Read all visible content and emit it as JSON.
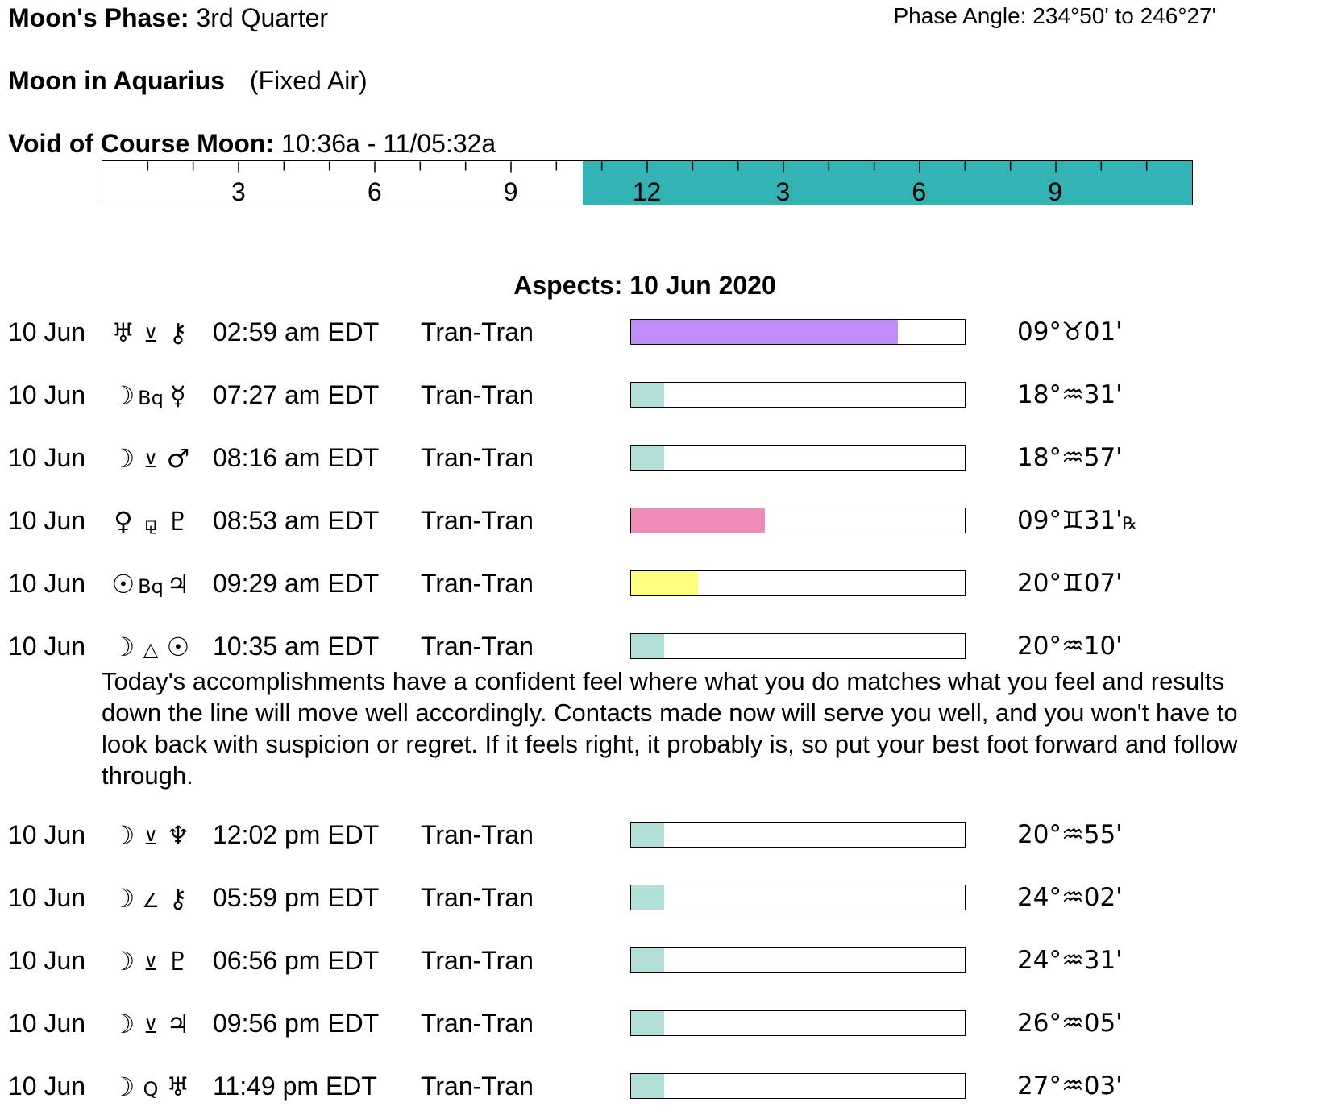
{
  "header": {
    "phase_label": "Moon's Phase:",
    "phase_value": "3rd Quarter",
    "phase_angle_label": "Phase Angle:",
    "phase_angle_value": "234°50' to 246°27'",
    "moon_sign_label": "Moon in Aquarius",
    "moon_sign_quality": "(Fixed Air)",
    "voc_label": "Void of Course Moon:",
    "voc_value": "10:36a - 11/05:32a"
  },
  "voc_timeline": {
    "hour_labels": [
      "3",
      "6",
      "9",
      "12",
      "3",
      "6",
      "9"
    ],
    "void_start_fraction": 0.441,
    "void_end_fraction": 1.0,
    "void_color": "#33b3b3"
  },
  "aspects": {
    "title": "Aspects: 10 Jun 2020",
    "rows": [
      {
        "date": "10 Jun",
        "planet1": "♅",
        "aspect": "⊻",
        "planet2": "⚷",
        "time": "02:59 am EDT",
        "kind": "Tran-Tran",
        "strength": 0.8,
        "color": "#c08cfa",
        "position": "09°♉01'",
        "retro": ""
      },
      {
        "date": "10 Jun",
        "planet1": "☽",
        "aspect": "Bq",
        "planet2": "☿",
        "time": "07:27 am EDT",
        "kind": "Tran-Tran",
        "strength": 0.1,
        "color": "#b3dfd9",
        "position": "18°♒31'",
        "retro": ""
      },
      {
        "date": "10 Jun",
        "planet1": "☽",
        "aspect": "⊻",
        "planet2": "♂",
        "time": "08:16 am EDT",
        "kind": "Tran-Tran",
        "strength": 0.1,
        "color": "#b3dfd9",
        "position": "18°♒57'",
        "retro": ""
      },
      {
        "date": "10 Jun",
        "planet1": "♀",
        "aspect": "⚼",
        "planet2": "♇",
        "time": "08:53 am EDT",
        "kind": "Tran-Tran",
        "strength": 0.4,
        "color": "#ef8cba",
        "position": "09°♊31'",
        "retro": "℞"
      },
      {
        "date": "10 Jun",
        "planet1": "☉",
        "aspect": "Bq",
        "planet2": "♃",
        "time": "09:29 am EDT",
        "kind": "Tran-Tran",
        "strength": 0.2,
        "color": "#ffff80",
        "position": "20°♊07'",
        "retro": ""
      },
      {
        "date": "10 Jun",
        "planet1": "☽",
        "aspect": "△",
        "planet2": "☉",
        "time": "10:35 am EDT",
        "kind": "Tran-Tran",
        "strength": 0.1,
        "color": "#b3dfd9",
        "position": "20°♒10'",
        "retro": ""
      },
      {
        "date": "10 Jun",
        "planet1": "☽",
        "aspect": "⊻",
        "planet2": "♆",
        "time": "12:02 pm EDT",
        "kind": "Tran-Tran",
        "strength": 0.1,
        "color": "#b3dfd9",
        "position": "20°♒55'",
        "retro": ""
      },
      {
        "date": "10 Jun",
        "planet1": "☽",
        "aspect": "∠",
        "planet2": "⚷",
        "time": "05:59 pm EDT",
        "kind": "Tran-Tran",
        "strength": 0.1,
        "color": "#b3dfd9",
        "position": "24°♒02'",
        "retro": ""
      },
      {
        "date": "10 Jun",
        "planet1": "☽",
        "aspect": "⊻",
        "planet2": "♇",
        "time": "06:56 pm EDT",
        "kind": "Tran-Tran",
        "strength": 0.1,
        "color": "#b3dfd9",
        "position": "24°♒31'",
        "retro": ""
      },
      {
        "date": "10 Jun",
        "planet1": "☽",
        "aspect": "⊻",
        "planet2": "♃",
        "time": "09:56 pm EDT",
        "kind": "Tran-Tran",
        "strength": 0.1,
        "color": "#b3dfd9",
        "position": "26°♒05'",
        "retro": ""
      },
      {
        "date": "10 Jun",
        "planet1": "☽",
        "aspect": "Q",
        "planet2": "♅",
        "time": "11:49 pm EDT",
        "kind": "Tran-Tran",
        "strength": 0.1,
        "color": "#b3dfd9",
        "position": "27°♒03'",
        "retro": ""
      }
    ],
    "interpretation": "Today's accomplishments have a confident feel where what you do matches what you feel and results down the line will move well accordingly. Contacts made now will serve you well, and you won't have to look back with suspicion or regret. If it feels right, it probably is, so put your best foot forward and follow through."
  }
}
